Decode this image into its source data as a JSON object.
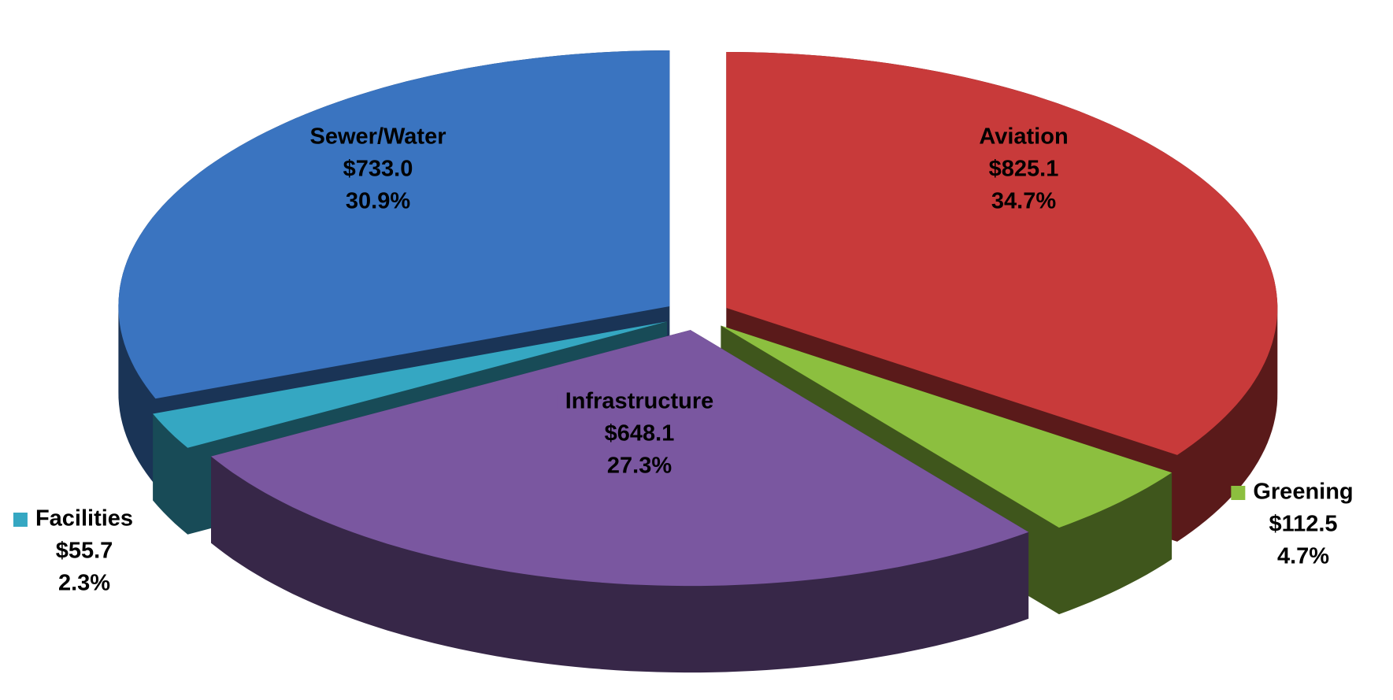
{
  "chart_data": {
    "type": "pie",
    "categories": [
      "Aviation",
      "Greening",
      "Infrastructure",
      "Facilities",
      "Sewer/Water"
    ],
    "values": [
      825.1,
      112.5,
      648.1,
      55.7,
      733.0
    ],
    "value_labels": [
      "$825.1",
      "$112.5",
      "$648.1",
      "$55.7",
      "$733.0"
    ],
    "percent_labels": [
      "34.7%",
      "4.7%",
      "27.3%",
      "2.3%",
      "30.9%"
    ],
    "colors": [
      "#c83a3a",
      "#8cbf3f",
      "#7a57a0",
      "#35a7c2",
      "#3a74c0"
    ]
  }
}
